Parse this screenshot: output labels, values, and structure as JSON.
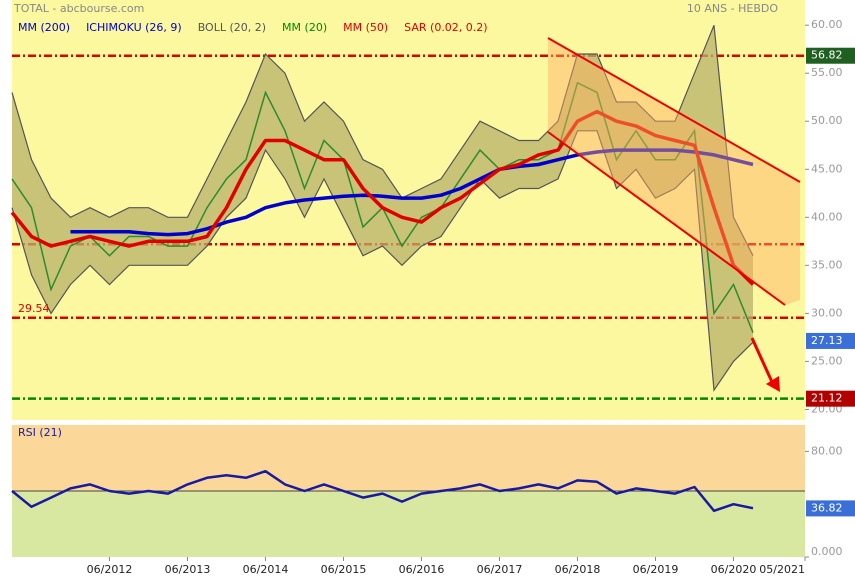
{
  "chart_data": [
    {
      "type": "line",
      "title": "TOTAL - abcbourse.com",
      "subtitle": "10 ANS - HEBDO",
      "x": [
        "03/2011",
        "06/2011",
        "09/2011",
        "12/2011",
        "03/2012",
        "06/2012",
        "09/2012",
        "12/2012",
        "03/2013",
        "06/2013",
        "09/2013",
        "12/2013",
        "03/2014",
        "06/2014",
        "09/2014",
        "12/2014",
        "03/2015",
        "06/2015",
        "09/2015",
        "12/2015",
        "03/2016",
        "06/2016",
        "09/2016",
        "12/2016",
        "03/2017",
        "06/2017",
        "09/2017",
        "12/2017",
        "03/2018",
        "06/2018",
        "09/2018",
        "12/2018",
        "03/2019",
        "06/2019",
        "09/2019",
        "12/2019",
        "03/2020",
        "06/2020",
        "09/2020"
      ],
      "xlim": [
        "03/2011",
        "05/2021"
      ],
      "ylim": [
        18.9,
        62.1
      ],
      "yticks": [
        {
          "value": 20,
          "label": "20.00"
        },
        {
          "value": 25,
          "label": "25.00"
        },
        {
          "value": 30,
          "label": "30.00"
        },
        {
          "value": 35,
          "label": "35.00"
        },
        {
          "value": 40,
          "label": "40.00"
        },
        {
          "value": 45,
          "label": "45.00"
        },
        {
          "value": 50,
          "label": "50.00"
        },
        {
          "value": 55,
          "label": "55.00"
        },
        {
          "value": 60,
          "label": "60.00"
        }
      ],
      "price": {
        "color": "#2e8b2e",
        "values": [
          44,
          41,
          32.5,
          37,
          38,
          36,
          38,
          38,
          37,
          37,
          41,
          44,
          46,
          53,
          49,
          43,
          48,
          46,
          39,
          41,
          37,
          40,
          41,
          44,
          47,
          45,
          46,
          46,
          47,
          54,
          53,
          46,
          49,
          46,
          46,
          49,
          30,
          33,
          28
        ]
      },
      "last_value": 27.13,
      "series": [
        {
          "name": "MM (200)",
          "color": "#0000cc",
          "values": [
            null,
            null,
            null,
            38.5,
            38.5,
            38.5,
            38.5,
            38.3,
            38.2,
            38.3,
            38.8,
            39.5,
            40,
            41,
            41.5,
            41.8,
            42,
            42.2,
            42.3,
            42.2,
            42,
            42,
            42.3,
            43,
            44,
            45,
            45.3,
            45.5,
            46,
            46.5,
            46.8,
            47,
            47,
            47,
            47,
            46.8,
            46.5,
            46,
            45.5
          ]
        },
        {
          "name": "ICHIMOKU (26, 9)",
          "color": "#0000cc"
        },
        {
          "name": "BOLL (20, 2)",
          "color": "#555555",
          "upper": [
            53,
            46,
            42,
            40,
            41,
            40,
            41,
            41,
            40,
            40,
            44,
            48,
            52,
            57,
            55,
            50,
            52,
            50,
            46,
            45,
            42,
            43,
            44,
            47,
            50,
            49,
            48,
            48,
            50,
            57,
            57,
            52,
            52,
            50,
            50,
            55,
            60,
            40,
            36
          ],
          "lower": [
            41,
            34,
            30,
            33,
            35,
            33,
            35,
            35,
            35,
            35,
            37,
            40,
            42,
            47,
            44,
            40,
            44,
            40,
            36,
            37,
            35,
            37,
            38,
            41,
            44,
            42,
            43,
            43,
            44,
            49,
            49,
            43,
            45,
            42,
            43,
            45,
            22,
            25,
            27
          ]
        },
        {
          "name": "MM (20)",
          "color": "#008800"
        },
        {
          "name": "MM (50)",
          "color": "#e00000",
          "values": [
            40.5,
            38,
            37,
            37.5,
            38,
            37.5,
            37,
            37.5,
            37.5,
            37.5,
            38,
            41,
            45,
            48,
            48,
            47,
            46,
            46,
            43,
            41,
            40,
            39.5,
            41,
            42,
            43.5,
            45,
            45.5,
            46.5,
            47,
            50,
            51,
            50,
            49.5,
            48.5,
            48,
            47.5,
            41,
            35,
            33
          ]
        },
        {
          "name": "SAR (0.02, 0.2)",
          "color": "#e00000"
        }
      ],
      "levels": [
        {
          "value": 56.82,
          "color": "#dd0000"
        },
        {
          "value": 37.2,
          "color": "#dd0000"
        },
        {
          "value": 29.54,
          "color": "#dd0000"
        },
        {
          "value": 21.12,
          "color": "#008800"
        }
      ]
    },
    {
      "type": "line",
      "title": "RSI (21)",
      "x": [
        "03/2011",
        "06/2011",
        "09/2011",
        "12/2011",
        "03/2012",
        "06/2012",
        "09/2012",
        "12/2012",
        "03/2013",
        "06/2013",
        "09/2013",
        "12/2013",
        "03/2014",
        "06/2014",
        "09/2014",
        "12/2014",
        "03/2015",
        "06/2015",
        "09/2015",
        "12/2015",
        "03/2016",
        "06/2016",
        "09/2016",
        "12/2016",
        "03/2017",
        "06/2017",
        "09/2017",
        "12/2017",
        "03/2018",
        "06/2018",
        "09/2018",
        "12/2018",
        "03/2019",
        "06/2019",
        "09/2019",
        "12/2019",
        "03/2020",
        "06/2020",
        "09/2020"
      ],
      "xlim": [
        "03/2011",
        "05/2021"
      ],
      "xticks": [
        "06/2012",
        "06/2013",
        "06/2014",
        "06/2015",
        "06/2016",
        "06/2017",
        "06/2018",
        "06/2019",
        "06/2020",
        "05/2021"
      ],
      "ylim": [
        0,
        100
      ],
      "yticks": [
        {
          "value": 0,
          "label": "0.000"
        },
        {
          "value": 80,
          "label": "80.00"
        }
      ],
      "series": [
        {
          "color": "#1a1aa0",
          "values": [
            50,
            38,
            45,
            52,
            55,
            50,
            48,
            50,
            48,
            55,
            60,
            62,
            60,
            65,
            55,
            50,
            55,
            50,
            45,
            48,
            42,
            48,
            50,
            52,
            55,
            50,
            52,
            55,
            52,
            58,
            57,
            48,
            52,
            50,
            48,
            53,
            35,
            40,
            37
          ]
        }
      ],
      "last_value": 36.82,
      "levels": [
        {
          "value": 50,
          "color": "#444444"
        }
      ]
    }
  ]
}
